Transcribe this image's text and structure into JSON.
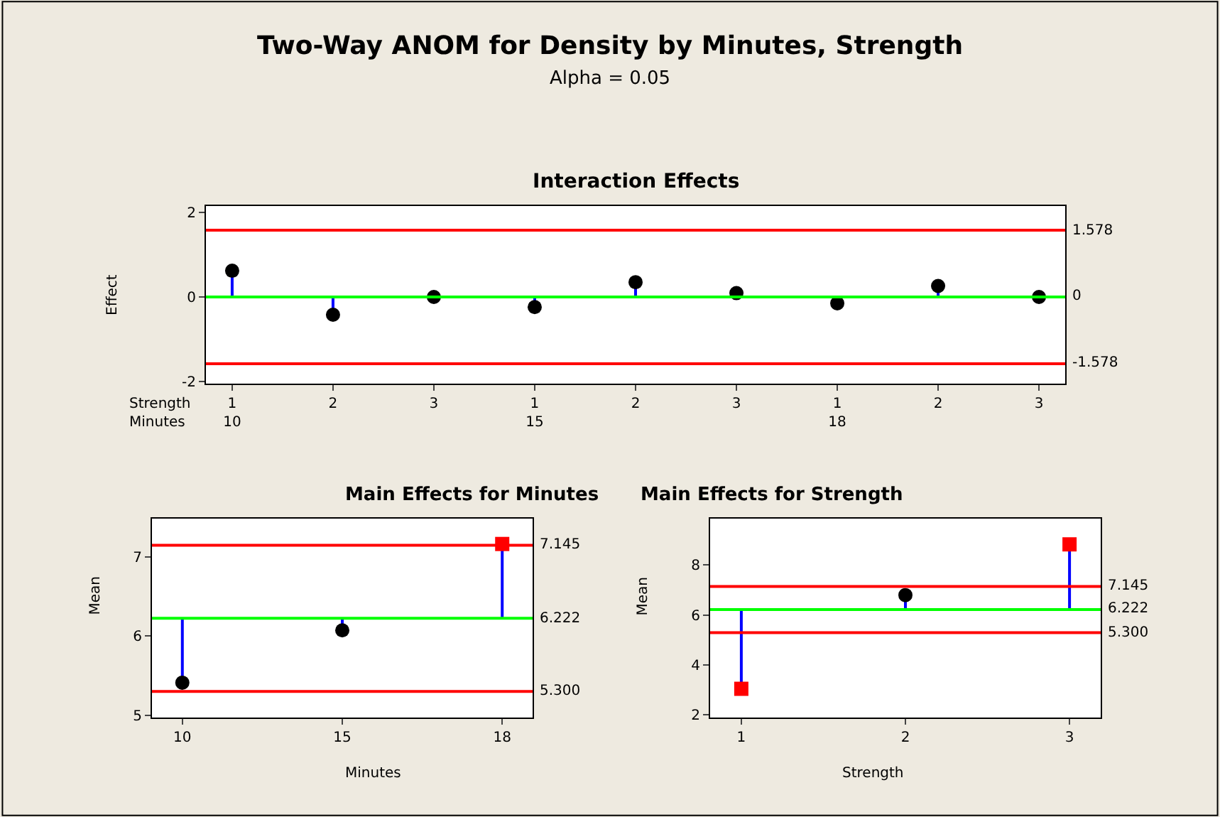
{
  "chart_data": [
    {
      "type": "scatter",
      "title": "Interaction Effects",
      "annotations": [
        "Two-Way ANOM for Density by Minutes, Strength",
        "Alpha = 0.05"
      ],
      "xlabel": "Strength\nMinutes",
      "ylabel": "Effect",
      "categories": [
        "1\n10",
        "2",
        "3",
        "1\n15",
        "2",
        "3",
        "1\n18",
        "2",
        "3"
      ],
      "series": [
        {
          "color": "#000000",
          "marker": "circle",
          "values": [
            0.62,
            -0.42,
            0.0,
            -0.24,
            0.35,
            0.09,
            -0.15,
            0.26,
            0.0
          ],
          "errors": [
            [
              0,
              0.62
            ],
            [
              -0.42,
              0
            ],
            null,
            [
              -0.24,
              0
            ],
            [
              0,
              0.35
            ],
            null,
            null,
            [
              0,
              0.26
            ],
            null
          ]
        }
      ],
      "ylim": [
        -2.05,
        2.15
      ],
      "yticks": [
        -2,
        0,
        2
      ],
      "ref_lines": [
        {
          "axis": "y",
          "value": 1.578,
          "label": "1.578",
          "color": "#ff0000"
        },
        {
          "axis": "y",
          "value": 0,
          "label": "0",
          "color": "#00ff00"
        },
        {
          "axis": "y",
          "value": -1.578,
          "label": "-1.578",
          "color": "#ff0000"
        }
      ],
      "grid": false
    },
    {
      "type": "scatter",
      "title": "Main Effects for Minutes",
      "xlabel": "Minutes",
      "ylabel": "Mean",
      "categories": [
        "10",
        "15",
        "18"
      ],
      "series": [
        {
          "color": "#000000",
          "marker": "circle",
          "values": [
            5.41,
            6.07,
            null
          ],
          "errors": [
            [
              5.41,
              6.222
            ],
            [
              6.07,
              6.222
            ],
            null
          ]
        },
        {
          "color": "#ff0000",
          "marker": "square",
          "values": [
            null,
            null,
            7.16
          ],
          "errors": [
            null,
            null,
            [
              6.222,
              7.16
            ]
          ]
        }
      ],
      "ylim": [
        4.97,
        7.48
      ],
      "yticks": [
        5,
        6,
        7
      ],
      "ref_lines": [
        {
          "axis": "y",
          "value": 7.145,
          "label": "7.145",
          "color": "#ff0000"
        },
        {
          "axis": "y",
          "value": 6.222,
          "label": "6.222",
          "color": "#00ff00"
        },
        {
          "axis": "y",
          "value": 5.3,
          "label": "5.300",
          "color": "#ff0000"
        }
      ],
      "grid": false
    },
    {
      "type": "scatter",
      "title": "Main Effects for Strength",
      "xlabel": "Strength",
      "ylabel": "Mean",
      "categories": [
        "1",
        "2",
        "3"
      ],
      "series": [
        {
          "color": "#000000",
          "marker": "circle",
          "values": [
            null,
            6.8,
            null
          ],
          "errors": [
            null,
            [
              6.222,
              6.8
            ],
            null
          ]
        },
        {
          "color": "#ff0000",
          "marker": "square",
          "values": [
            3.05,
            null,
            8.83
          ],
          "errors": [
            [
              3.05,
              6.222
            ],
            null,
            [
              6.222,
              8.83
            ]
          ]
        }
      ],
      "ylim": [
        1.9,
        9.86
      ],
      "yticks": [
        2,
        4,
        6,
        8
      ],
      "ref_lines": [
        {
          "axis": "y",
          "value": 7.145,
          "label": "7.145",
          "color": "#ff0000"
        },
        {
          "axis": "y",
          "value": 6.222,
          "label": "6.222",
          "color": "#00ff00"
        },
        {
          "axis": "y",
          "value": 5.3,
          "label": "5.300",
          "color": "#ff0000"
        }
      ],
      "grid": false
    }
  ]
}
